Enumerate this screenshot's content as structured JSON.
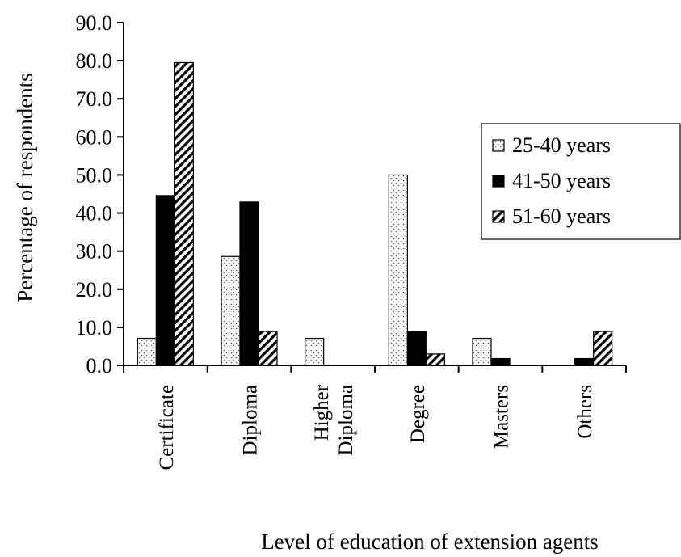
{
  "chart_data": {
    "type": "bar",
    "ylabel": "Percentage of respondents",
    "xlabel": "Level of education of extension agents",
    "ylim": [
      0,
      90
    ],
    "ytick_step": 10,
    "ytick_labels": [
      "0.0",
      "10.0",
      "20.0",
      "30.0",
      "40.0",
      "50.0",
      "60.0",
      "70.0",
      "80.0",
      "90.0"
    ],
    "categories": [
      [
        "Certificate"
      ],
      [
        "Diploma"
      ],
      [
        "Higher",
        "Diploma"
      ],
      [
        "Degree"
      ],
      [
        "Masters"
      ],
      [
        "Others"
      ]
    ],
    "series": [
      {
        "name": "25-40 years",
        "pattern": "dots",
        "values": [
          7.1,
          28.6,
          7.1,
          50.0,
          7.1,
          0.0
        ]
      },
      {
        "name": "41-50 years",
        "pattern": "solid",
        "values": [
          44.6,
          42.9,
          0.0,
          8.9,
          1.8,
          1.8
        ]
      },
      {
        "name": "51-60 years",
        "pattern": "diagonal",
        "values": [
          79.5,
          8.9,
          0.0,
          3.0,
          0.0,
          8.9
        ]
      }
    ],
    "legend": {
      "placement": "right"
    },
    "grid": false
  }
}
